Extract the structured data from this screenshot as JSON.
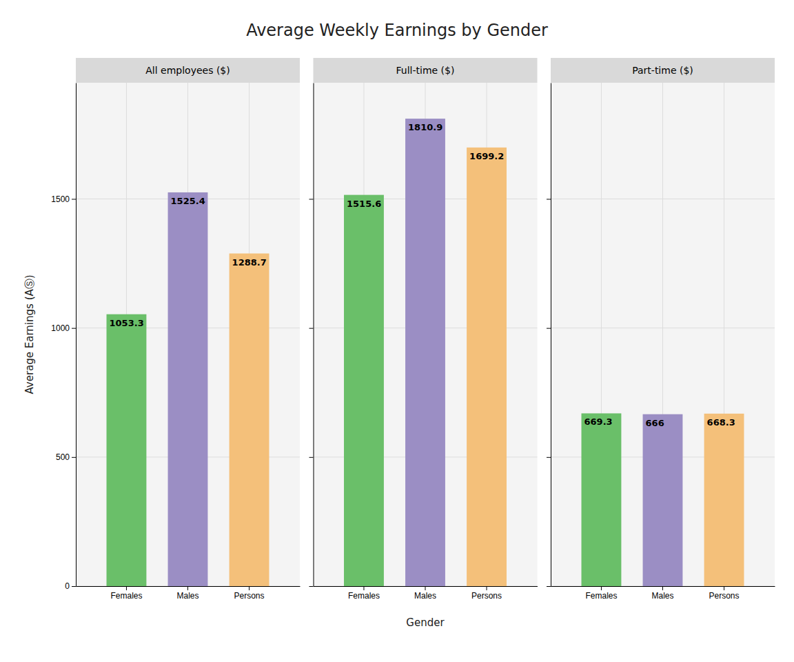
{
  "title": "Average Weekly Earnings by Gender",
  "chart_data": [
    {
      "type": "bar",
      "title": "All employees ($)",
      "categories": [
        "Females",
        "Males",
        "Persons"
      ],
      "values": [
        1053.3,
        1525.4,
        1288.7
      ],
      "colors": [
        "#6abf69",
        "#9b8ec4",
        "#f4c07a"
      ],
      "ylabel": "Average Earnings (AⓈ)",
      "ylim": [
        0,
        1950
      ],
      "yticks": [
        0,
        500,
        1000,
        1500
      ],
      "grid": true,
      "data_labels": true
    },
    {
      "type": "bar",
      "title": "Full-time ($)",
      "categories": [
        "Females",
        "Males",
        "Persons"
      ],
      "values": [
        1515.6,
        1810.9,
        1699.2
      ],
      "colors": [
        "#6abf69",
        "#9b8ec4",
        "#f4c07a"
      ],
      "xlabel": "Gender",
      "ylim": [
        0,
        1950
      ],
      "yticks": [
        0,
        500,
        1000,
        1500
      ],
      "grid": true,
      "data_labels": true,
      "tick_labels": "x"
    },
    {
      "type": "bar",
      "title": "Part-time ($)",
      "categories": [
        "Females",
        "Males",
        "Persons"
      ],
      "values": [
        669.3,
        666.0,
        668.3
      ],
      "colors": [
        "#6abf69",
        "#9b8ec4",
        "#f4c07a"
      ],
      "ylim": [
        0,
        1950
      ],
      "yticks": [
        0,
        500,
        1000,
        1500
      ],
      "grid": true,
      "data_labels": true,
      "tick_labels": "x"
    }
  ]
}
